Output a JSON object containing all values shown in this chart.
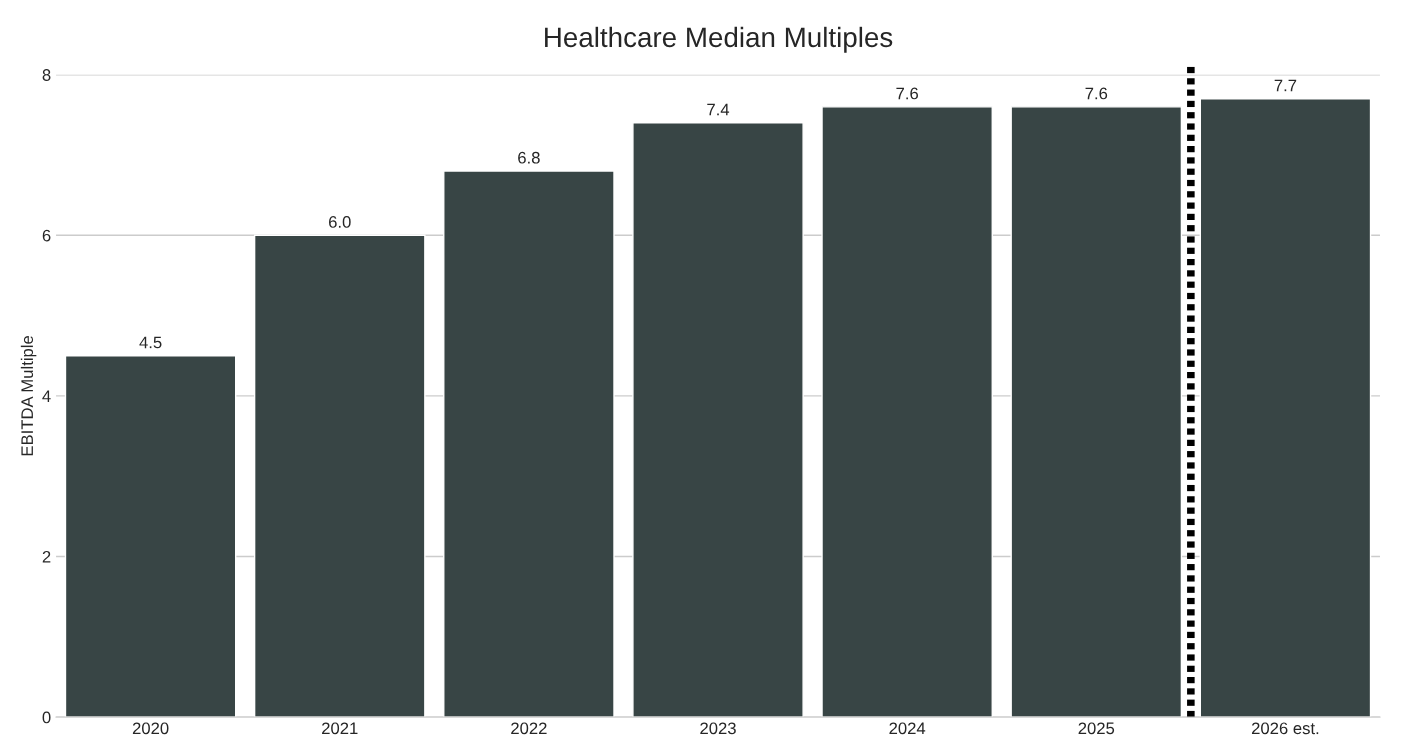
{
  "chart_data": {
    "type": "bar",
    "title": "Healthcare Median Multiples",
    "ylabel": "EBITDA Multiple",
    "categories": [
      "2020",
      "2021",
      "2022",
      "2023",
      "2024",
      "2025",
      "2026 est."
    ],
    "values": [
      4.5,
      6.0,
      6.8,
      7.4,
      7.6,
      7.6,
      7.7
    ],
    "value_labels": [
      "4.5",
      "6.0",
      "6.8",
      "7.4",
      "7.6",
      "7.6",
      "7.7"
    ],
    "color": "#384545",
    "ylim": [
      0,
      8
    ],
    "yticks": [
      0,
      2,
      4,
      6,
      8
    ],
    "grid": "y",
    "legend": false
  }
}
